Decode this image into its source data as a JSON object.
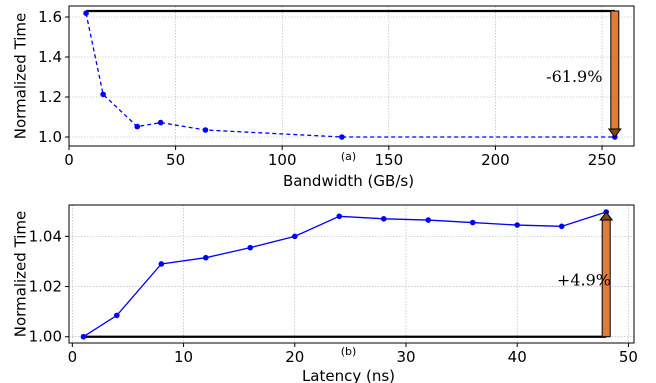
{
  "chart_data": [
    {
      "id": "a",
      "type": "line",
      "sublabel": "(a)",
      "xlabel": "Bandwidth (GB/s)",
      "ylabel": "Normalized Time",
      "xlim": [
        0,
        265
      ],
      "ylim": [
        0.955,
        1.655
      ],
      "xticks": [
        0,
        50,
        100,
        150,
        200,
        250
      ],
      "yticks": [
        1.0,
        1.2,
        1.4,
        1.6
      ],
      "ytick_labels": [
        "1.0",
        "1.2",
        "1.4",
        "1.6"
      ],
      "grid": true,
      "line_style": "dashed",
      "color": "#0000ff",
      "series": [
        {
          "x": [
            8,
            16,
            32,
            43,
            64,
            128,
            256
          ],
          "y": [
            1.619,
            1.213,
            1.052,
            1.072,
            1.035,
            1.0,
            1.0
          ]
        }
      ],
      "reference_line": {
        "y": 1.63,
        "x_from": 8,
        "x_to": 256,
        "color": "#000000"
      },
      "annotation": {
        "text": "-61.9%",
        "arrow_x": 256,
        "arrow_from": 1.63,
        "arrow_to": 1.0,
        "arrow_color": "#e07b39",
        "label_x": 237,
        "label_y": 1.3
      }
    },
    {
      "id": "b",
      "type": "line",
      "sublabel": "(b)",
      "xlabel": "Latency (ns)",
      "ylabel": "Normalized Time",
      "xlim": [
        -0.3,
        50.5
      ],
      "ylim": [
        0.9975,
        1.0525
      ],
      "xticks": [
        0,
        10,
        20,
        30,
        40,
        50
      ],
      "yticks": [
        1.0,
        1.02,
        1.04
      ],
      "ytick_labels": [
        "1.00",
        "1.02",
        "1.04"
      ],
      "grid": true,
      "line_style": "solid",
      "color": "#0000ff",
      "series": [
        {
          "x": [
            1,
            4,
            8,
            12,
            16,
            20,
            24,
            28,
            32,
            36,
            40,
            44,
            48
          ],
          "y": [
            1.0,
            1.0085,
            1.029,
            1.0315,
            1.0355,
            1.04,
            1.048,
            1.047,
            1.0465,
            1.0455,
            1.0445,
            1.044,
            1.0497
          ]
        }
      ],
      "reference_line": {
        "y": 1.0,
        "x_from": 1,
        "x_to": 48,
        "color": "#000000"
      },
      "annotation": {
        "text": "+4.9%",
        "arrow_x": 48,
        "arrow_from": 1.0,
        "arrow_to": 1.0497,
        "arrow_color": "#e07b39",
        "label_x": 46,
        "label_y": 1.0225
      }
    }
  ]
}
